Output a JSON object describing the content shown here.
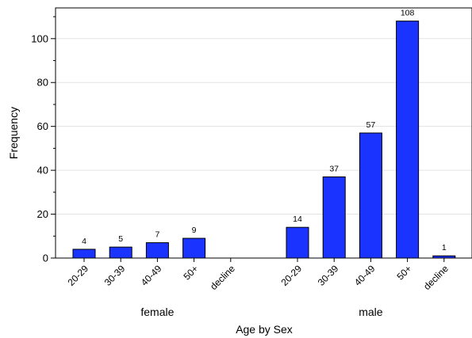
{
  "chart_data": {
    "type": "bar",
    "xlabel": "Age by Sex",
    "ylabel": "Frequency",
    "ylim": [
      0,
      114
    ],
    "yticks": [
      0,
      20,
      40,
      60,
      80,
      100
    ],
    "grid": true,
    "bar_color": "#1a33ff",
    "groups": [
      {
        "name": "female",
        "categories": [
          "20-29",
          "30-39",
          "40-49",
          "50+",
          "decline"
        ],
        "values": [
          4,
          5,
          7,
          9,
          0
        ],
        "labels": [
          "4",
          "5",
          "7",
          "9",
          ""
        ]
      },
      {
        "name": "male",
        "categories": [
          "20-29",
          "30-39",
          "40-49",
          "50+",
          "decline"
        ],
        "values": [
          14,
          37,
          57,
          108,
          1
        ],
        "labels": [
          "14",
          "37",
          "57",
          "108",
          "1"
        ]
      }
    ]
  }
}
